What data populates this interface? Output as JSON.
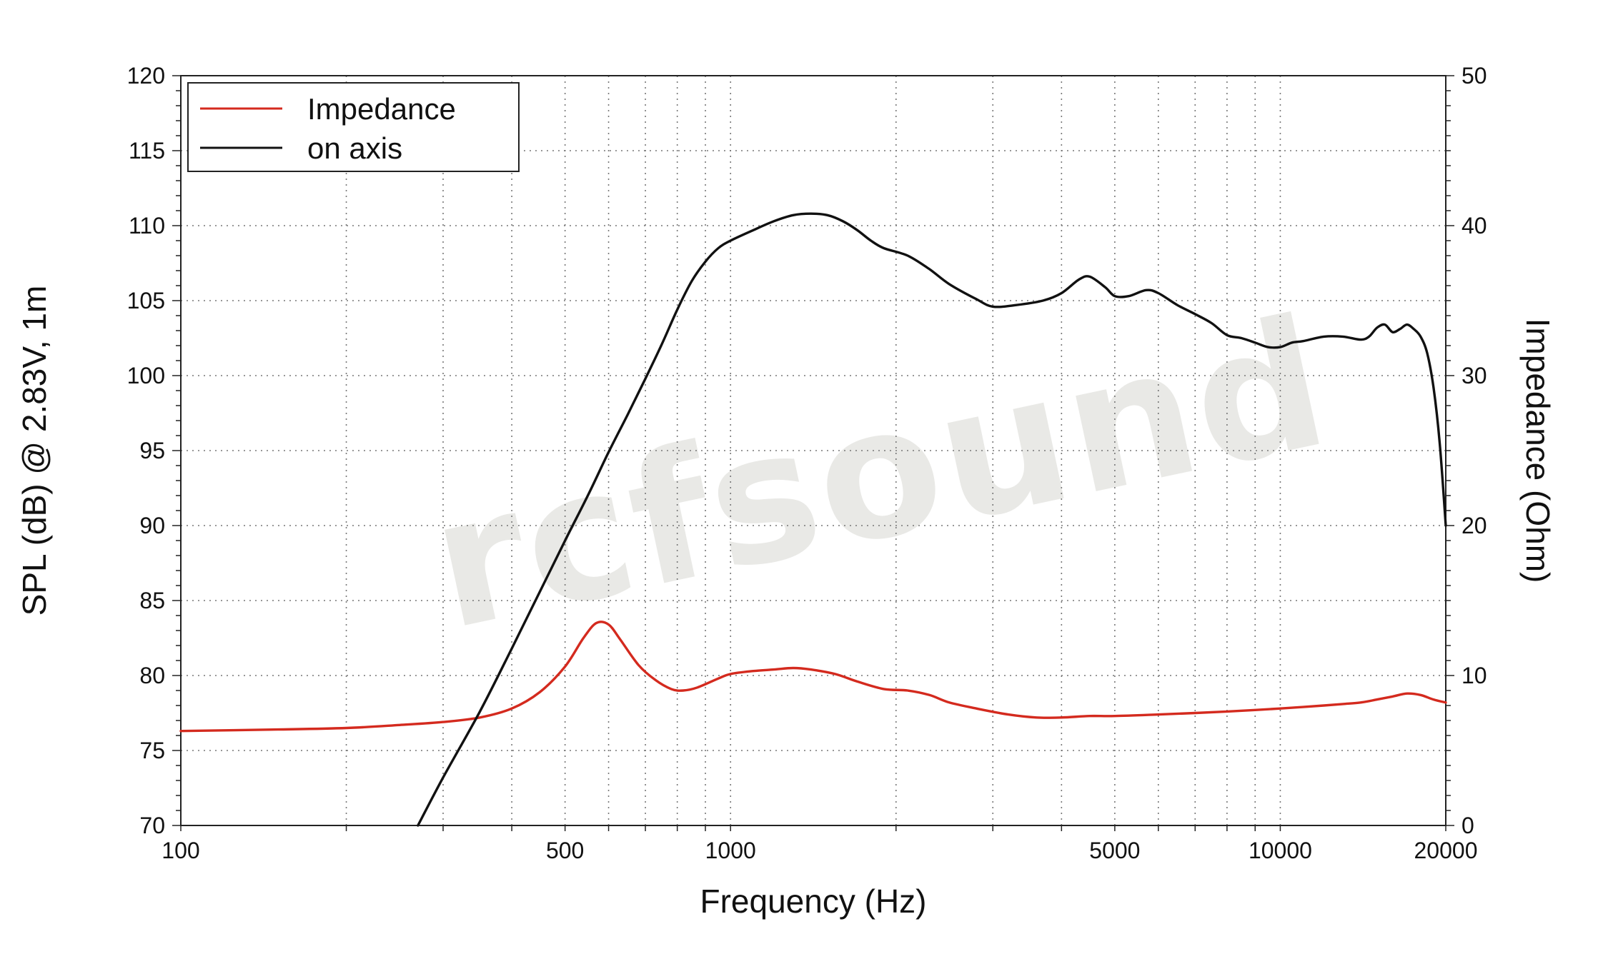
{
  "chart_data": {
    "type": "line",
    "x_axis": {
      "label": "Frequency (Hz)",
      "scale": "log",
      "range": [
        100,
        20000
      ],
      "tick_values": [
        100,
        500,
        1000,
        5000,
        10000,
        20000
      ],
      "tick_labels": [
        "100",
        "500",
        "1000",
        "5000",
        "10000",
        "20000"
      ],
      "grid_values": [
        100,
        200,
        300,
        400,
        500,
        600,
        700,
        800,
        900,
        1000,
        2000,
        3000,
        4000,
        5000,
        6000,
        7000,
        8000,
        9000,
        10000,
        20000
      ]
    },
    "y_axis_left": {
      "label": "SPL (dB) @ 2.83V, 1m",
      "range": [
        70,
        120
      ],
      "tick_values": [
        70,
        75,
        80,
        85,
        90,
        95,
        100,
        105,
        110,
        115,
        120
      ],
      "tick_labels": [
        "70",
        "75",
        "80",
        "85",
        "90",
        "95",
        "100",
        "105",
        "110",
        "115",
        "120"
      ]
    },
    "y_axis_right": {
      "label": "Impedance (Ohm)",
      "range": [
        0,
        50
      ],
      "tick_values": [
        0,
        10,
        20,
        30,
        40,
        50
      ],
      "tick_labels": [
        "0",
        "10",
        "20",
        "30",
        "40",
        "50"
      ]
    },
    "grid": true,
    "legend": {
      "position": "top-left",
      "entries": [
        "Impedance",
        "on axis"
      ]
    },
    "watermark": "rcfsound",
    "series": [
      {
        "name": "Impedance",
        "axis": "right",
        "color": "#d42a1e",
        "points": [
          [
            100,
            6.3
          ],
          [
            150,
            6.4
          ],
          [
            200,
            6.5
          ],
          [
            250,
            6.7
          ],
          [
            300,
            6.9
          ],
          [
            350,
            7.2
          ],
          [
            400,
            7.8
          ],
          [
            450,
            8.9
          ],
          [
            500,
            10.6
          ],
          [
            540,
            12.5
          ],
          [
            570,
            13.5
          ],
          [
            600,
            13.4
          ],
          [
            630,
            12.4
          ],
          [
            680,
            10.7
          ],
          [
            730,
            9.7
          ],
          [
            780,
            9.1
          ],
          [
            820,
            9.0
          ],
          [
            870,
            9.2
          ],
          [
            950,
            9.8
          ],
          [
            1000,
            10.1
          ],
          [
            1100,
            10.3
          ],
          [
            1200,
            10.4
          ],
          [
            1300,
            10.5
          ],
          [
            1400,
            10.4
          ],
          [
            1550,
            10.1
          ],
          [
            1700,
            9.6
          ],
          [
            1900,
            9.1
          ],
          [
            2100,
            9.0
          ],
          [
            2300,
            8.7
          ],
          [
            2500,
            8.2
          ],
          [
            2800,
            7.8
          ],
          [
            3200,
            7.4
          ],
          [
            3600,
            7.2
          ],
          [
            4000,
            7.2
          ],
          [
            4500,
            7.3
          ],
          [
            5000,
            7.3
          ],
          [
            6000,
            7.4
          ],
          [
            7000,
            7.5
          ],
          [
            8000,
            7.6
          ],
          [
            9000,
            7.7
          ],
          [
            10000,
            7.8
          ],
          [
            11000,
            7.9
          ],
          [
            12000,
            8.0
          ],
          [
            13000,
            8.1
          ],
          [
            14000,
            8.2
          ],
          [
            15000,
            8.4
          ],
          [
            16000,
            8.6
          ],
          [
            17000,
            8.8
          ],
          [
            18000,
            8.7
          ],
          [
            19000,
            8.4
          ],
          [
            20000,
            8.2
          ]
        ]
      },
      {
        "name": "on axis",
        "axis": "left",
        "color": "#111111",
        "points": [
          [
            270,
            70.0
          ],
          [
            300,
            73.2
          ],
          [
            350,
            77.6
          ],
          [
            400,
            81.8
          ],
          [
            450,
            85.6
          ],
          [
            500,
            89.0
          ],
          [
            550,
            92.0
          ],
          [
            600,
            94.9
          ],
          [
            650,
            97.4
          ],
          [
            700,
            99.8
          ],
          [
            750,
            102.1
          ],
          [
            800,
            104.4
          ],
          [
            850,
            106.3
          ],
          [
            900,
            107.6
          ],
          [
            950,
            108.5
          ],
          [
            1000,
            109.0
          ],
          [
            1100,
            109.7
          ],
          [
            1200,
            110.3
          ],
          [
            1300,
            110.7
          ],
          [
            1400,
            110.8
          ],
          [
            1500,
            110.7
          ],
          [
            1600,
            110.3
          ],
          [
            1700,
            109.7
          ],
          [
            1800,
            109.0
          ],
          [
            1900,
            108.5
          ],
          [
            2100,
            108.0
          ],
          [
            2300,
            107.1
          ],
          [
            2500,
            106.1
          ],
          [
            2800,
            105.1
          ],
          [
            3000,
            104.6
          ],
          [
            3300,
            104.7
          ],
          [
            3700,
            105.0
          ],
          [
            4000,
            105.5
          ],
          [
            4300,
            106.4
          ],
          [
            4500,
            106.6
          ],
          [
            4800,
            105.9
          ],
          [
            5000,
            105.3
          ],
          [
            5300,
            105.3
          ],
          [
            5700,
            105.7
          ],
          [
            6000,
            105.5
          ],
          [
            6500,
            104.7
          ],
          [
            7000,
            104.1
          ],
          [
            7500,
            103.5
          ],
          [
            8000,
            102.7
          ],
          [
            8500,
            102.5
          ],
          [
            9000,
            102.2
          ],
          [
            9500,
            101.9
          ],
          [
            10000,
            101.9
          ],
          [
            10500,
            102.2
          ],
          [
            11000,
            102.3
          ],
          [
            12000,
            102.6
          ],
          [
            13000,
            102.6
          ],
          [
            14000,
            102.4
          ],
          [
            14500,
            102.6
          ],
          [
            15000,
            103.2
          ],
          [
            15500,
            103.4
          ],
          [
            16000,
            102.9
          ],
          [
            16500,
            103.1
          ],
          [
            17000,
            103.4
          ],
          [
            17500,
            103.1
          ],
          [
            18000,
            102.6
          ],
          [
            18500,
            101.5
          ],
          [
            19000,
            99.2
          ],
          [
            19500,
            95.5
          ],
          [
            20000,
            90.0
          ]
        ]
      }
    ]
  }
}
